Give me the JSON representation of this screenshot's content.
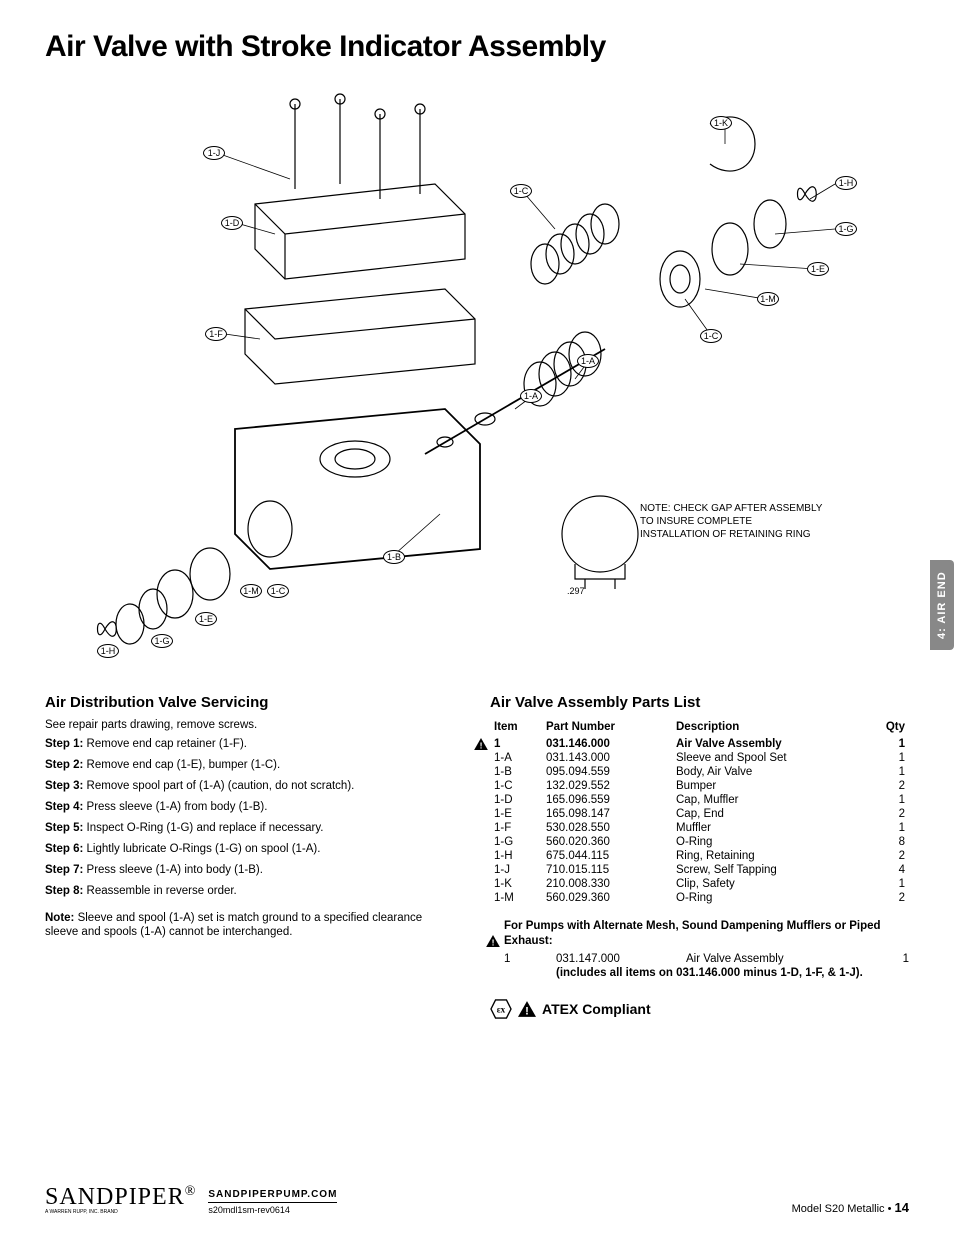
{
  "title": "Air Valve with Stroke Indicator Assembly",
  "side_tab": "4: AIR END",
  "diagram": {
    "callouts": [
      "1-J",
      "1-D",
      "1-F",
      "1-B",
      "1-M",
      "1-C",
      "1-E",
      "1-G",
      "1-H",
      "1-C",
      "1-A",
      "1-A",
      "1-C",
      "1-M",
      "1-E",
      "1-G",
      "1-H",
      "1-K",
      "1-C"
    ],
    "note": "NOTE:  CHECK GAP AFTER ASSEMBLY\nTO INSURE COMPLETE\nINSTALLATION OF RETAINING RING",
    "gap_dim": ".297"
  },
  "servicing": {
    "heading": "Air Distribution Valve Servicing",
    "intro": "See repair parts drawing, remove screws.",
    "steps": [
      {
        "label": "Step 1:",
        "text": " Remove end cap retainer (1-F)."
      },
      {
        "label": "Step 2:",
        "text": " Remove end cap (1-E), bumper (1-C)."
      },
      {
        "label": "Step 3:",
        "text": " Remove spool part of (1-A) (caution, do not scratch)."
      },
      {
        "label": "Step 4:",
        "text": " Press sleeve (1-A) from body (1-B)."
      },
      {
        "label": "Step 5:",
        "text": " Inspect O-Ring (1-G) and replace if necessary."
      },
      {
        "label": "Step 6:",
        "text": " Lightly lubricate O-Rings (1-G) on spool (1-A)."
      },
      {
        "label": "Step 7:",
        "text": " Press sleeve (1-A) into body (1-B)."
      },
      {
        "label": "Step 8:",
        "text": " Reassemble in reverse order."
      }
    ],
    "note_label": "Note:",
    "note_text": " Sleeve and spool (1-A) set is match ground to a specified clearance sleeve and spools (1-A) cannot be interchanged."
  },
  "parts": {
    "heading": "Air  Valve Assembly Parts List",
    "headers": {
      "item": "Item",
      "pn": "Part Number",
      "desc": "Description",
      "qty": "Qty"
    },
    "rows": [
      {
        "item": "1",
        "pn": "031.146.000",
        "desc": "Air Valve Assembly",
        "qty": "1",
        "bold": true,
        "warn": true
      },
      {
        "item": "1-A",
        "pn": "031.143.000",
        "desc": "Sleeve and Spool Set",
        "qty": "1"
      },
      {
        "item": "1-B",
        "pn": "095.094.559",
        "desc": "Body, Air Valve",
        "qty": "1"
      },
      {
        "item": "1-C",
        "pn": "132.029.552",
        "desc": "Bumper",
        "qty": "2"
      },
      {
        "item": "1-D",
        "pn": "165.096.559",
        "desc": "Cap, Muffler",
        "qty": "1"
      },
      {
        "item": "1-E",
        "pn": "165.098.147",
        "desc": "Cap, End",
        "qty": "2"
      },
      {
        "item": "1-F",
        "pn": "530.028.550",
        "desc": "Muffler",
        "qty": "1"
      },
      {
        "item": "1-G",
        "pn": "560.020.360",
        "desc": "O-Ring",
        "qty": "8"
      },
      {
        "item": "1-H",
        "pn": "675.044.115",
        "desc": "Ring, Retaining",
        "qty": "2"
      },
      {
        "item": "1-J",
        "pn": "710.015.115",
        "desc": "Screw, Self Tapping",
        "qty": "4"
      },
      {
        "item": "1-K",
        "pn": "210.008.330",
        "desc": "Clip, Safety",
        "qty": "1"
      },
      {
        "item": "1-M",
        "pn": "560.029.360",
        "desc": "O-Ring",
        "qty": "2"
      }
    ],
    "alt_heading": "For Pumps with Alternate Mesh, Sound Dampening Mufflers or Piped Exhaust:",
    "alt_row": {
      "item": "1",
      "pn": "031.147.000",
      "desc": "Air Valve Assembly",
      "qty": "1"
    },
    "includes": "(includes all items on 031.146.000 minus 1-D, 1-F, & 1-J).",
    "atex": "ATEX Compliant"
  },
  "footer": {
    "logo": "SANDPIPER",
    "logo_sub": "A WARREN RUPP, INC. BRAND",
    "url": "SANDPIPERPUMP.COM",
    "rev": "s20mdl1sm-rev0614",
    "model": "Model S20 Metallic •",
    "page": "14"
  },
  "colors": {
    "tab_bg": "#888888",
    "text": "#000000"
  }
}
